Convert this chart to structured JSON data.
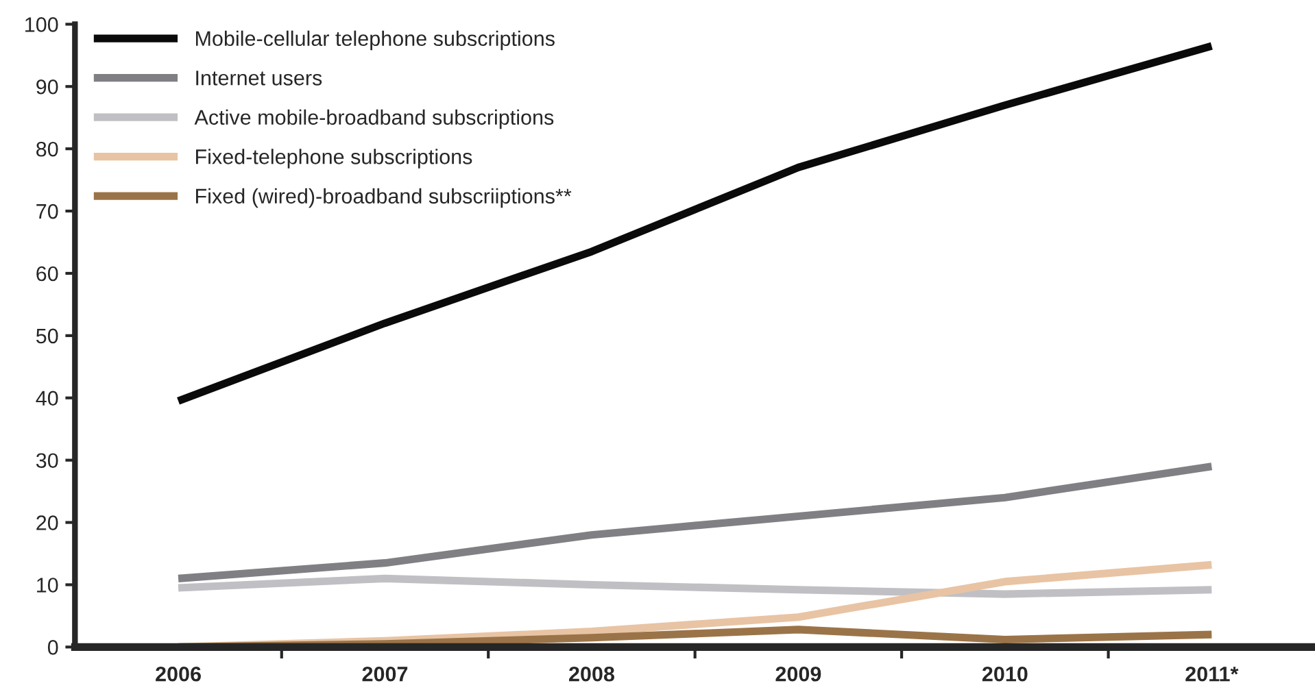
{
  "chart_data": {
    "type": "line",
    "categories": [
      "2006",
      "2007",
      "2008",
      "2009",
      "2010",
      "2011*"
    ],
    "series": [
      {
        "name": "Mobile-cellular telephone subscriptions",
        "color": "#0a0a0a",
        "values": [
          39.5,
          52,
          63.5,
          77,
          87,
          96.5
        ]
      },
      {
        "name": "Internet users",
        "color": "#808084",
        "values": [
          11,
          13.5,
          18,
          21,
          24,
          29
        ]
      },
      {
        "name": "Active mobile-broadband subscriptions",
        "color": "#c0c0c4",
        "values": [
          9.5,
          11,
          10,
          9.2,
          8.5,
          9.2
        ]
      },
      {
        "name": "Fixed-telephone subscriptions",
        "color": "#e8c4a4",
        "values": [
          0,
          1,
          2.5,
          4.8,
          10.5,
          13.2
        ]
      },
      {
        "name": "Fixed (wired)-broadband subscriiptions**",
        "color": "#9a7448",
        "values": [
          0,
          0.5,
          1.5,
          2.8,
          1.2,
          2
        ]
      }
    ],
    "ylim": [
      0,
      100
    ],
    "yticks": [
      0,
      10,
      20,
      30,
      40,
      50,
      60,
      70,
      80,
      90,
      100
    ],
    "grid": false,
    "legend": "top left",
    "marker": "none",
    "line_style": "solid"
  }
}
